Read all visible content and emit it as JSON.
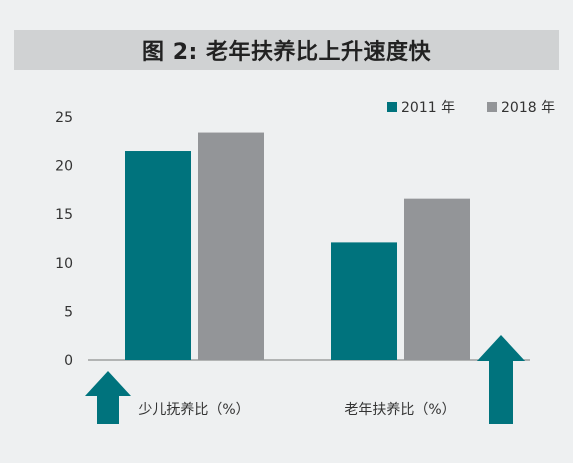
{
  "title": "图 2: 老年扶养比上升速度快",
  "colors": {
    "series_2011": "#00737d",
    "series_2018": "#939598",
    "background": "#eef0f1",
    "title_bar": "#d0d2d3"
  },
  "chart_data": {
    "type": "bar",
    "categories": [
      "少儿抚养比（%）",
      "老年扶养比（%）"
    ],
    "series": [
      {
        "name": "2011 年",
        "values": [
          21.5,
          12.1
        ]
      },
      {
        "name": "2018 年",
        "values": [
          23.4,
          16.6
        ]
      }
    ],
    "ylim": [
      0,
      25
    ],
    "yticks": [
      "0",
      "5",
      "10",
      "15",
      "20",
      "25"
    ],
    "legend": "top-right",
    "grid": false
  }
}
